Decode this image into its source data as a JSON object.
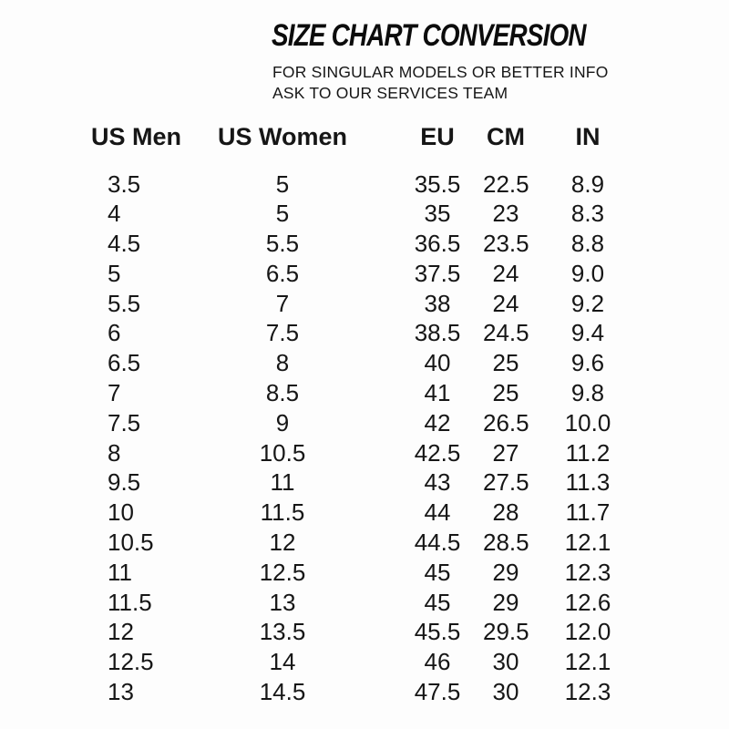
{
  "page": {
    "title": "SIZE CHART CONVERSION",
    "subtitle_line1": "FOR SINGULAR MODELS OR BETTER INFO",
    "subtitle_line2": "ASK TO OUR SERVICES TEAM"
  },
  "colors": {
    "background": "#fdfdfd",
    "text": "#161616",
    "title": "#0c0c0c"
  },
  "chart_data": {
    "type": "table",
    "title": "SIZE CHART CONVERSION",
    "columns": [
      "US Men",
      "US Women",
      "EU",
      "CM",
      "IN"
    ],
    "rows": [
      [
        "3.5",
        "5",
        "35.5",
        "22.5",
        "8.9"
      ],
      [
        "4",
        "5",
        "35",
        "23",
        "8.3"
      ],
      [
        "4.5",
        "5.5",
        "36.5",
        "23.5",
        "8.8"
      ],
      [
        "5",
        "6.5",
        "37.5",
        "24",
        "9.0"
      ],
      [
        "5.5",
        "7",
        "38",
        "24",
        "9.2"
      ],
      [
        "6",
        "7.5",
        "38.5",
        "24.5",
        "9.4"
      ],
      [
        "6.5",
        "8",
        "40",
        "25",
        "9.6"
      ],
      [
        "7",
        "8.5",
        "41",
        "25",
        "9.8"
      ],
      [
        "7.5",
        "9",
        "42",
        "26.5",
        "10.0"
      ],
      [
        "8",
        "10.5",
        "42.5",
        "27",
        "11.2"
      ],
      [
        "9.5",
        "11",
        "43",
        "27.5",
        "11.3"
      ],
      [
        "10",
        "11.5",
        "44",
        "28",
        "11.7"
      ],
      [
        "10.5",
        "12",
        "44.5",
        "28.5",
        "12.1"
      ],
      [
        "11",
        "12.5",
        "45",
        "29",
        "12.3"
      ],
      [
        "11.5",
        "13",
        "45",
        "29",
        "12.6"
      ],
      [
        "12",
        "13.5",
        "45.5",
        "29.5",
        "12.0"
      ],
      [
        "12.5",
        "14",
        "46",
        "30",
        "12.1"
      ],
      [
        "13",
        "14.5",
        "47.5",
        "30",
        "12.3"
      ]
    ]
  }
}
